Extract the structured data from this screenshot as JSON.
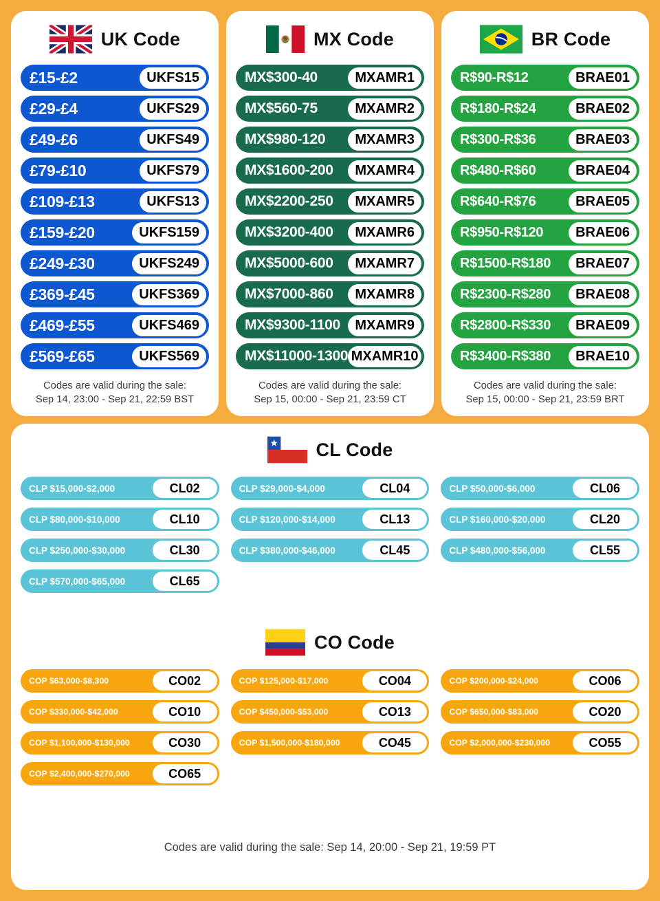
{
  "page": {
    "background_color": "#F5AB3D"
  },
  "panels": [
    {
      "id": "uk",
      "title": "UK Code",
      "pill_color": "#0D57D1",
      "flag_icon": "uk-flag-icon",
      "rows": [
        {
          "amount": "£15-£2",
          "code": "UKFS15"
        },
        {
          "amount": "£29-£4",
          "code": "UKFS29"
        },
        {
          "amount": "£49-£6",
          "code": "UKFS49"
        },
        {
          "amount": "£79-£10",
          "code": "UKFS79"
        },
        {
          "amount": "£109-£13",
          "code": "UKFS13"
        },
        {
          "amount": "£159-£20",
          "code": "UKFS159"
        },
        {
          "amount": "£249-£30",
          "code": "UKFS249"
        },
        {
          "amount": "£369-£45",
          "code": "UKFS369"
        },
        {
          "amount": "£469-£55",
          "code": "UKFS469"
        },
        {
          "amount": "£569-£65",
          "code": "UKFS569"
        }
      ],
      "validity_line1": "Codes are valid during the sale:",
      "validity_line2": "Sep 14, 23:00 - Sep 21, 22:59 BST"
    },
    {
      "id": "mx",
      "title": "MX Code",
      "pill_color": "#186B4B",
      "flag_icon": "mx-flag-icon",
      "rows": [
        {
          "amount": "MX$300-40",
          "code": "MXAMR1"
        },
        {
          "amount": "MX$560-75",
          "code": "MXAMR2"
        },
        {
          "amount": "MX$980-120",
          "code": "MXAMR3"
        },
        {
          "amount": "MX$1600-200",
          "code": "MXAMR4"
        },
        {
          "amount": "MX$2200-250",
          "code": "MXAMR5"
        },
        {
          "amount": "MX$3200-400",
          "code": "MXAMR6"
        },
        {
          "amount": "MX$5000-600",
          "code": "MXAMR7"
        },
        {
          "amount": "MX$7000-860",
          "code": "MXAMR8"
        },
        {
          "amount": "MX$9300-1100",
          "code": "MXAMR9"
        },
        {
          "amount": "MX$11000-1300",
          "code": "MXAMR10"
        }
      ],
      "validity_line1": "Codes are valid during the sale:",
      "validity_line2": "Sep 15, 00:00 - Sep 21, 23:59 CT"
    },
    {
      "id": "br",
      "title": "BR Code",
      "pill_color": "#24A441",
      "flag_icon": "br-flag-icon",
      "rows": [
        {
          "amount": "R$90-R$12",
          "code": "BRAE01"
        },
        {
          "amount": "R$180-R$24",
          "code": "BRAE02"
        },
        {
          "amount": "R$300-R$36",
          "code": "BRAE03"
        },
        {
          "amount": "R$480-R$60",
          "code": "BRAE04"
        },
        {
          "amount": "R$640-R$76",
          "code": "BRAE05"
        },
        {
          "amount": "R$950-R$120",
          "code": "BRAE06"
        },
        {
          "amount": "R$1500-R$180",
          "code": "BRAE07"
        },
        {
          "amount": "R$2300-R$280",
          "code": "BRAE08"
        },
        {
          "amount": "R$2800-R$330",
          "code": "BRAE09"
        },
        {
          "amount": "R$3400-R$380",
          "code": "BRAE10"
        }
      ],
      "validity_line1": "Codes are valid during the sale:",
      "validity_line2": "Sep 15, 00:00 - Sep 21, 23:59 BRT"
    }
  ],
  "sections": [
    {
      "id": "cl",
      "title": "CL Code",
      "pill_color": "#5BC4D6",
      "flag_icon": "cl-flag-icon",
      "rows": [
        {
          "amount": "CLP $15,000-$2,000",
          "code": "CL02"
        },
        {
          "amount": "CLP $29,000-$4,000",
          "code": "CL04"
        },
        {
          "amount": "CLP $50,000-$6,000",
          "code": "CL06"
        },
        {
          "amount": "CLP $80,000-$10,000",
          "code": "CL10"
        },
        {
          "amount": "CLP $120,000-$14,000",
          "code": "CL13"
        },
        {
          "amount": "CLP $160,000-$20,000",
          "code": "CL20"
        },
        {
          "amount": "CLP $250,000-$30,000",
          "code": "CL30"
        },
        {
          "amount": "CLP $380,000-$46,000",
          "code": "CL45"
        },
        {
          "amount": "CLP $480,000-$56,000",
          "code": "CL55"
        },
        {
          "amount": "CLP $570,000-$65,000",
          "code": "CL65"
        }
      ]
    },
    {
      "id": "co",
      "title": "CO Code",
      "pill_color": "#F7A60D",
      "flag_icon": "co-flag-icon",
      "rows": [
        {
          "amount": "COP $63,000-$8,300",
          "code": "CO02"
        },
        {
          "amount": "COP $125,000-$17,000",
          "code": "CO04"
        },
        {
          "amount": "COP $200,000-$24,000",
          "code": "CO06"
        },
        {
          "amount": "COP $330,000-$42,000",
          "code": "CO10"
        },
        {
          "amount": "COP $450,000-$53,000",
          "code": "CO13"
        },
        {
          "amount": "COP $650,000-$83,000",
          "code": "CO20"
        },
        {
          "amount": "COP $1,100,000-$130,000",
          "code": "CO30"
        },
        {
          "amount": "COP $1,500,000-$180,000",
          "code": "CO45"
        },
        {
          "amount": "COP $2,000,000-$230,000",
          "code": "CO55"
        },
        {
          "amount": "COP $2,400,000-$270,000",
          "code": "CO65"
        }
      ]
    }
  ],
  "footer": {
    "validity": "Codes are valid during the sale: Sep 14, 20:00 - Sep 21, 19:59 PT"
  }
}
